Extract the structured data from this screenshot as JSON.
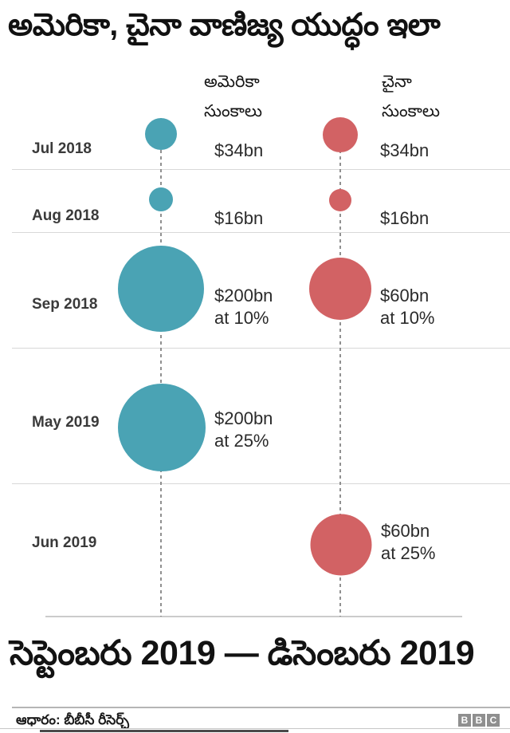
{
  "title": "అమెరికా, చైనా వాణిజ్య యుద్ధం ఇలా",
  "columns": {
    "us": {
      "line1": "అమెరికా",
      "line2": "సుంకాలు"
    },
    "china": {
      "line1": "చైనా",
      "line2": "సుంకాలు"
    }
  },
  "colors": {
    "us_bubble": "#4aa3b4",
    "china_bubble": "#d26264",
    "separator": "#d8d8d8",
    "dashed_line": "#909090"
  },
  "rows": [
    {
      "date": "Jul 2018",
      "us_amount": "$34bn",
      "us_rate": "",
      "cn_amount": "$34bn",
      "cn_rate": "",
      "us_bubble": {
        "diameter": 40,
        "color": "#4aa3b4"
      },
      "cn_bubble": {
        "diameter": 44,
        "color": "#d26264"
      }
    },
    {
      "date": "Aug 2018",
      "us_amount": "$16bn",
      "us_rate": "",
      "cn_amount": "$16bn",
      "cn_rate": "",
      "us_bubble": {
        "diameter": 30,
        "color": "#4aa3b4"
      },
      "cn_bubble": {
        "diameter": 28,
        "color": "#d26264"
      }
    },
    {
      "date": "Sep 2018",
      "us_amount": "$200bn",
      "us_rate": "at 10%",
      "cn_amount": "$60bn",
      "cn_rate": "at 10%",
      "us_bubble": {
        "diameter": 108,
        "color": "#4aa3b4"
      },
      "cn_bubble": {
        "diameter": 78,
        "color": "#d26264"
      }
    },
    {
      "date": "May 2019",
      "us_amount": "$200bn",
      "us_rate": "at 25%",
      "cn_amount": "",
      "cn_rate": "",
      "us_bubble": {
        "diameter": 110,
        "color": "#4aa3b4"
      }
    },
    {
      "date": "Jun 2019",
      "us_amount": "",
      "us_rate": "",
      "cn_amount": "$60bn",
      "cn_rate": "at 25%",
      "cn_bubble": {
        "diameter": 77,
        "color": "#d26264"
      }
    }
  ],
  "period_heading": "సెప్టెంబరు 2019 — డిసెంబరు 2019",
  "footer": {
    "source": "ఆధారం: బీబీసీ రీసెర్చ్",
    "logo": {
      "b1": "B",
      "b2": "B",
      "b3": "C"
    }
  },
  "chart_data": {
    "type": "scatter",
    "variant": "bubble-timeline",
    "title": "అమెరికా, చైనా వాణిజ్య యుద్ధం ఇలా",
    "categories": [
      "Jul 2018",
      "Aug 2018",
      "Sep 2018",
      "May 2019",
      "Jun 2019"
    ],
    "series": [
      {
        "name": "అమెరికా సుంకాలు",
        "color": "#4aa3b4",
        "values_bn_usd": [
          34,
          16,
          200,
          200,
          null
        ],
        "tariff_rate": [
          null,
          null,
          "10%",
          "25%",
          null
        ],
        "labels": [
          "$34bn",
          "$16bn",
          "$200bn at 10%",
          "$200bn at 25%",
          ""
        ]
      },
      {
        "name": "చైనా సుంకాలు",
        "color": "#d26264",
        "values_bn_usd": [
          34,
          16,
          60,
          null,
          60
        ],
        "tariff_rate": [
          null,
          null,
          "10%",
          null,
          "25%"
        ],
        "labels": [
          "$34bn",
          "$16bn",
          "$60bn at 10%",
          "",
          "$60bn at 25%"
        ]
      }
    ],
    "bubble_size_encoding": "area proportional to tariff value in $bn",
    "period_note": "సెప్టెంబరు 2019 — డిసెంబరు 2019",
    "source": "ఆధారం: బీబీసీ రీసెర్చ్",
    "legend_position": "column headers above each bubble track",
    "grid": "horizontal row separators, dashed vertical guide per series"
  }
}
